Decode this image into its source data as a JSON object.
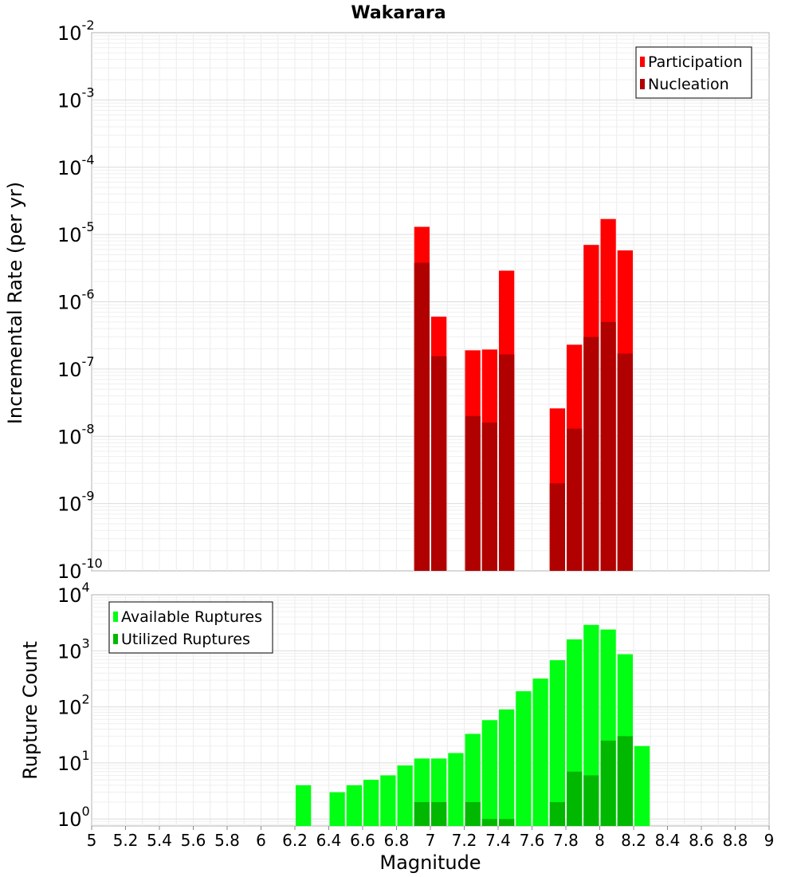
{
  "chart_data": [
    {
      "type": "bar",
      "title": "Wakarara",
      "ylabel": "Incremental Rate (per yr)",
      "yscale": "log",
      "ylim": [
        1e-10,
        0.01
      ],
      "xlim": [
        5,
        9
      ],
      "y_tick_labels": [
        {
          "base": "10",
          "exp": "-10"
        },
        {
          "base": "10",
          "exp": "-9"
        },
        {
          "base": "10",
          "exp": "-8"
        },
        {
          "base": "10",
          "exp": "-7"
        },
        {
          "base": "10",
          "exp": "-6"
        },
        {
          "base": "10",
          "exp": "-5"
        },
        {
          "base": "10",
          "exp": "-4"
        },
        {
          "base": "10",
          "exp": "-3"
        },
        {
          "base": "10",
          "exp": "-2"
        }
      ],
      "legend_position": "top-right",
      "grid": true,
      "x": [
        6.95,
        7.05,
        7.25,
        7.35,
        7.45,
        7.75,
        7.85,
        7.95,
        8.05,
        8.15
      ],
      "series": [
        {
          "name": "Participation",
          "color": "#ff0000",
          "values": [
            1.3e-05,
            6e-07,
            1.9e-07,
            1.95e-07,
            2.9e-06,
            2.6e-08,
            2.3e-07,
            7e-06,
            1.7e-05,
            5.8e-06
          ]
        },
        {
          "name": "Nucleation",
          "color": "#b00000",
          "values": [
            3.8e-06,
            1.55e-07,
            2e-08,
            1.6e-08,
            1.65e-07,
            2e-09,
            1.3e-08,
            3e-07,
            5e-07,
            1.7e-07
          ]
        }
      ]
    },
    {
      "type": "bar",
      "xlabel": "Magnitude",
      "ylabel": "Rupture Count",
      "yscale": "log",
      "ylim": [
        0.75,
        10000
      ],
      "xlim": [
        5,
        9
      ],
      "x_ticks": [
        "5",
        "5.2",
        "5.4",
        "5.6",
        "5.8",
        "6",
        "6.2",
        "6.4",
        "6.6",
        "6.8",
        "7",
        "7.2",
        "7.4",
        "7.6",
        "7.8",
        "8",
        "8.2",
        "8.4",
        "8.6",
        "8.8",
        "9"
      ],
      "y_tick_labels": [
        {
          "base": "10",
          "exp": "0"
        },
        {
          "base": "10",
          "exp": "1"
        },
        {
          "base": "10",
          "exp": "2"
        },
        {
          "base": "10",
          "exp": "3"
        },
        {
          "base": "10",
          "exp": "4"
        }
      ],
      "legend_position": "top-left",
      "grid": true,
      "series": [
        {
          "name": "Available Ruptures",
          "color": "#00ff12",
          "x": [
            6.25,
            6.45,
            6.55,
            6.65,
            6.75,
            6.85,
            6.95,
            7.05,
            7.15,
            7.25,
            7.35,
            7.45,
            7.55,
            7.65,
            7.75,
            7.85,
            7.95,
            8.05,
            8.15,
            8.25
          ],
          "values": [
            4,
            3,
            4,
            5,
            6,
            9,
            12,
            12,
            15,
            33,
            58,
            90,
            190,
            320,
            680,
            1600,
            2900,
            2400,
            870,
            20
          ]
        },
        {
          "name": "Utilized Ruptures",
          "color": "#00b800",
          "x": [
            6.95,
            7.05,
            7.25,
            7.35,
            7.45,
            7.75,
            7.85,
            7.95,
            8.05,
            8.15
          ],
          "values": [
            2,
            2,
            2,
            1,
            1,
            2,
            7,
            6,
            25,
            30
          ]
        }
      ]
    }
  ]
}
